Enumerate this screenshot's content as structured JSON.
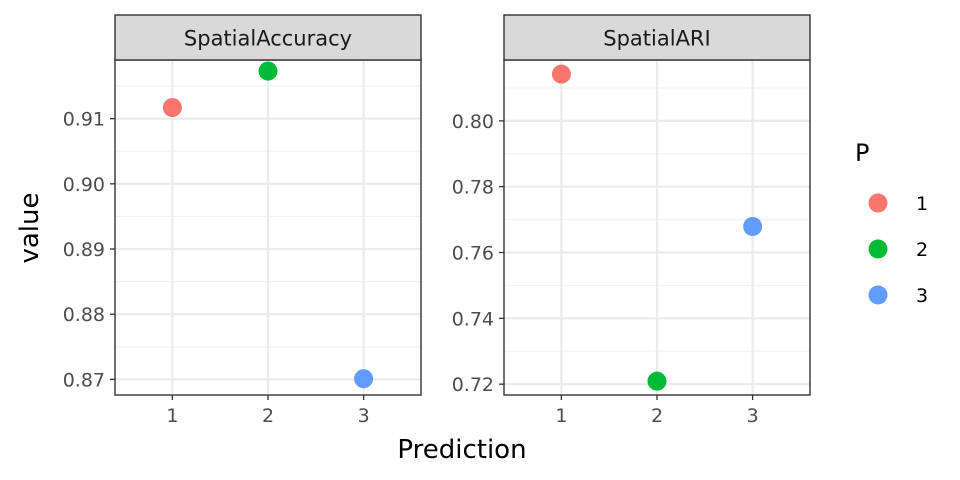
{
  "chart_data": [
    {
      "type": "scatter",
      "title": "SpatialAccuracy",
      "xlabel": "Prediction",
      "ylabel": "value",
      "x": [
        1,
        2,
        3
      ],
      "xticks": [
        "1",
        "2",
        "3"
      ],
      "xlim": [
        0.4,
        3.6
      ],
      "ylim": [
        0.8676,
        0.919
      ],
      "yticks": [
        0.87,
        0.88,
        0.89,
        0.9,
        0.91
      ],
      "ytick_labels": [
        "0.87",
        "0.88",
        "0.89",
        "0.90",
        "0.91"
      ],
      "points": [
        {
          "x": 1,
          "y": 0.9117,
          "group": "1"
        },
        {
          "x": 2,
          "y": 0.9173,
          "group": "2"
        },
        {
          "x": 3,
          "y": 0.8701,
          "group": "3"
        }
      ],
      "grid": true
    },
    {
      "type": "scatter",
      "title": "SpatialARI",
      "xlabel": "Prediction",
      "ylabel": "value",
      "x": [
        1,
        2,
        3
      ],
      "xticks": [
        "1",
        "2",
        "3"
      ],
      "xlim": [
        0.4,
        3.6
      ],
      "ylim": [
        0.7167,
        0.8185
      ],
      "yticks": [
        0.72,
        0.74,
        0.76,
        0.78,
        0.8
      ],
      "ytick_labels": [
        "0.72",
        "0.74",
        "0.76",
        "0.78",
        "0.80"
      ],
      "points": [
        {
          "x": 1,
          "y": 0.8142,
          "group": "1"
        },
        {
          "x": 2,
          "y": 0.7209,
          "group": "2"
        },
        {
          "x": 3,
          "y": 0.7679,
          "group": "3"
        }
      ],
      "grid": true
    }
  ],
  "axis": {
    "xlabel": "Prediction",
    "ylabel": "value"
  },
  "legend": {
    "title": "P",
    "placement": "right",
    "items": [
      {
        "label": "1",
        "color": "#F8766D"
      },
      {
        "label": "2",
        "color": "#00BA38"
      },
      {
        "label": "3",
        "color": "#619CFF"
      }
    ]
  },
  "colors": {
    "1": "#F8766D",
    "2": "#00BA38",
    "3": "#619CFF",
    "strip_fill": "#D9D9D9",
    "grid_major": "#EBEBEB",
    "grid_minor": "#F2F2F2",
    "border": "#333333",
    "tick_text": "#4D4D4D"
  }
}
